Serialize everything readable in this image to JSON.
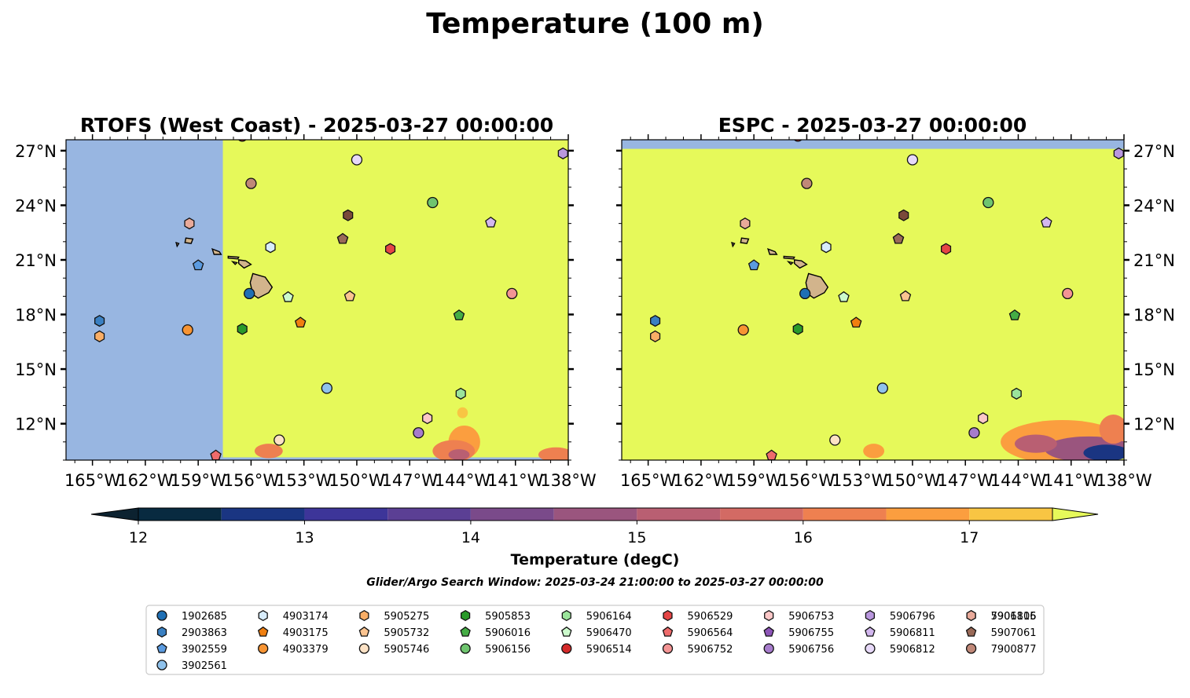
{
  "figure": {
    "title": "Temperature (100 m)",
    "search_window": "Glider/Argo Search Window: 2025-03-24 21:00:00 to 2025-03-27 00:00:00"
  },
  "colorbar": {
    "label": "Temperature (degC)",
    "ticks": [
      "12",
      "13",
      "14",
      "15",
      "16",
      "17"
    ],
    "min": 11.75,
    "max": 17.5,
    "levels": [
      11.75,
      12.0,
      12.5,
      13.0,
      13.5,
      14.0,
      14.5,
      15.0,
      15.5,
      16.0,
      16.5,
      17.0,
      17.5
    ],
    "colors": [
      "#0c2230",
      "#082a40",
      "#1a3582",
      "#3d3599",
      "#5b3f94",
      "#7a4a8a",
      "#9a557e",
      "#b95f72",
      "#d36a64",
      "#ee8050",
      "#fb9e3f",
      "#f8c543"
    ],
    "over_color": "#e6f95a",
    "under_color": "#0c2230"
  },
  "chart_data": [
    {
      "type": "map",
      "title": "RTOFS (West Coast) - 2025-03-27 00:00:00",
      "xlim": [
        -166.5,
        -138
      ],
      "ylim": [
        10,
        27.6
      ],
      "xticks": [
        -165,
        -162,
        -159,
        -156,
        -153,
        -150,
        -147,
        -144,
        -141,
        -138
      ],
      "xtick_labels": [
        "165°W",
        "162°W",
        "159°W",
        "156°W",
        "153°W",
        "150°W",
        "147°W",
        "144°W",
        "141°W",
        "138°W"
      ],
      "yticks": [
        12,
        15,
        18,
        21,
        24,
        27
      ],
      "ytick_labels": [
        "12°N",
        "15°N",
        "18°N",
        "21°N",
        "24°N",
        "27°N"
      ],
      "ytick_side": "left",
      "no_data_region": {
        "lon": [
          -166.5,
          -157.6
        ],
        "lat": [
          10,
          27.6
        ]
      },
      "data_coverage_lat": [
        10.15,
        27.6
      ],
      "background_temperature_degC": "above 17.5"
    },
    {
      "type": "map",
      "title": "ESPC - 2025-03-27 00:00:00",
      "xlim": [
        -166.5,
        -138
      ],
      "ylim": [
        10,
        27.6
      ],
      "xticks": [
        -165,
        -162,
        -159,
        -156,
        -153,
        -150,
        -147,
        -144,
        -141,
        -138
      ],
      "xtick_labels": [
        "165°W",
        "162°W",
        "159°W",
        "156°W",
        "153°W",
        "150°W",
        "147°W",
        "144°W",
        "141°W",
        "138°W"
      ],
      "yticks": [
        12,
        15,
        18,
        21,
        24,
        27
      ],
      "ytick_labels": [
        "12°N",
        "15°N",
        "18°N",
        "21°N",
        "24°N",
        "27°N"
      ],
      "ytick_side": "right",
      "no_data_region": {
        "lon": [
          -166.5,
          -138
        ],
        "lat": [
          27.1,
          27.6
        ]
      },
      "data_coverage_lat": [
        10,
        27.1
      ],
      "background_temperature_degC": "above 17.5"
    }
  ],
  "floats": [
    {
      "id": "1902685",
      "marker": "circle",
      "color": "#1f6fb4",
      "lon": -156.1,
      "lat": 19.15
    },
    {
      "id": "2903863",
      "marker": "hexagon",
      "color": "#3a80c2",
      "lon": -164.6,
      "lat": 17.65
    },
    {
      "id": "3902559",
      "marker": "pentagon",
      "color": "#5b9be0",
      "lon": -159.0,
      "lat": 20.7
    },
    {
      "id": "3902561",
      "marker": "circle",
      "color": "#8fc2ec",
      "lon": -151.7,
      "lat": 13.95
    },
    {
      "id": "4903174",
      "marker": "hexagon",
      "color": "#d7ecfb",
      "lon": -154.9,
      "lat": 21.7
    },
    {
      "id": "4903175",
      "marker": "pentagon",
      "color": "#f07f10",
      "lon": -153.2,
      "lat": 17.55
    },
    {
      "id": "4903379",
      "marker": "circle",
      "color": "#f79433",
      "lon": -159.6,
      "lat": 17.15
    },
    {
      "id": "5905275",
      "marker": "hexagon",
      "color": "#f9ae66",
      "lon": -164.6,
      "lat": 16.8
    },
    {
      "id": "5905732",
      "marker": "pentagon",
      "color": "#fbc490",
      "lon": -150.4,
      "lat": 19.0
    },
    {
      "id": "5905746",
      "marker": "circle",
      "color": "#fde2c5",
      "lon": -154.4,
      "lat": 11.1
    },
    {
      "id": "5905853",
      "marker": "hexagon",
      "color": "#2a9a2a",
      "lon": -156.5,
      "lat": 17.2
    },
    {
      "id": "5906016",
      "marker": "pentagon",
      "color": "#45ad45",
      "lon": -144.2,
      "lat": 17.95
    },
    {
      "id": "5906156",
      "marker": "circle",
      "color": "#6fc56f",
      "lon": -145.7,
      "lat": 24.15
    },
    {
      "id": "5906164",
      "marker": "hexagon",
      "color": "#9be49b",
      "lon": -144.1,
      "lat": 13.65
    },
    {
      "id": "5906470",
      "marker": "pentagon",
      "color": "#ccfacc",
      "lon": -153.9,
      "lat": 18.95
    },
    {
      "id": "5906514",
      "marker": "circle",
      "color": "#d42a2a",
      "lon": -156.5,
      "lat": 27.8
    },
    {
      "id": "5906529",
      "marker": "hexagon",
      "color": "#e54545",
      "lon": -148.1,
      "lat": 21.6
    },
    {
      "id": "5906564",
      "marker": "pentagon",
      "color": "#ee6b6b",
      "lon": -158.0,
      "lat": 10.25
    },
    {
      "id": "5906752",
      "marker": "circle",
      "color": "#f39494",
      "lon": -141.2,
      "lat": 19.15
    },
    {
      "id": "5906753",
      "marker": "hexagon",
      "color": "#fbc7c7",
      "lon": -146.0,
      "lat": 12.3
    },
    {
      "id": "5906755",
      "marker": "pentagon",
      "color": "#8d55b8",
      "lon": -150.8,
      "lat": 22.15
    },
    {
      "id": "5906756",
      "marker": "circle",
      "color": "#a77ccc",
      "lon": -146.5,
      "lat": 11.5
    },
    {
      "id": "5906796",
      "marker": "hexagon",
      "color": "#b997de",
      "lon": -138.3,
      "lat": 26.85
    },
    {
      "id": "5906811",
      "marker": "pentagon",
      "color": "#d3b7ef",
      "lon": -142.4,
      "lat": 23.05
    },
    {
      "id": "5906812",
      "marker": "circle",
      "color": "#e7d9f9",
      "lon": -150.0,
      "lat": 26.5
    },
    {
      "id": "5906815",
      "marker": "hexagon",
      "color": "#7a4a3a",
      "lon": -150.5,
      "lat": 23.45
    },
    {
      "id": "5907061",
      "marker": "pentagon",
      "color": "#9a6a58",
      "lon": -150.8,
      "lat": 22.15
    },
    {
      "id": "7900877",
      "marker": "circle",
      "color": "#c08878",
      "lon": -156.0,
      "lat": 25.2
    },
    {
      "id": "7901106",
      "marker": "hexagon",
      "color": "#e9aa9a",
      "lon": -159.5,
      "lat": 23.0
    }
  ],
  "legend": {
    "placement": "bottom-center",
    "columns": 9
  }
}
